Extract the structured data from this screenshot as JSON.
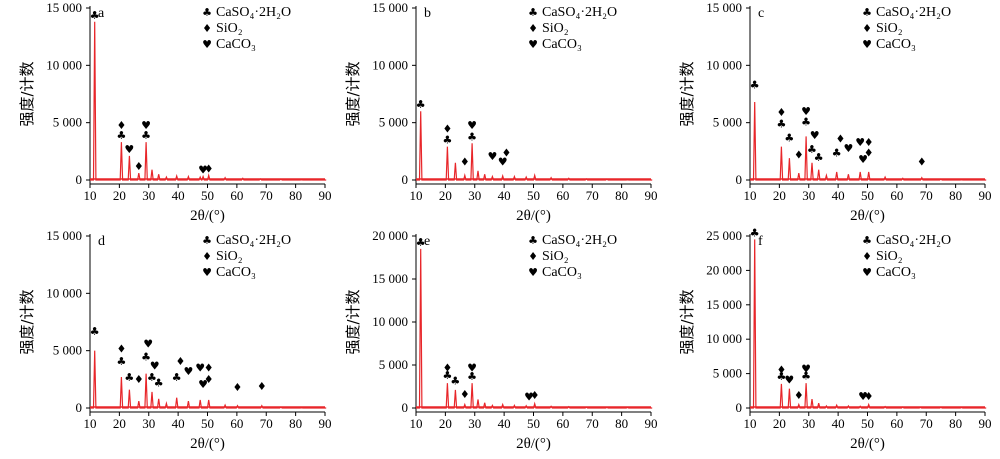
{
  "chart_data": [
    {
      "type": "line",
      "panel_label": "a",
      "ylim": [
        0,
        15000
      ],
      "yticks": [
        "0",
        "5 000",
        "10 000",
        "15 000"
      ],
      "ytick_values": [
        0,
        5000,
        10000,
        15000
      ],
      "xlim": [
        10,
        90
      ],
      "xticks": [
        "10",
        "20",
        "30",
        "40",
        "50",
        "60",
        "70",
        "80",
        "90"
      ],
      "xlabel": "2θ/(°)",
      "ylabel": "强度/计数",
      "legend": [
        "CaSO₄·2H₂O",
        "SiO₂",
        "CaCO₃"
      ],
      "series": [
        {
          "color": "#e8262a",
          "x": [
            10,
            11.6,
            20.7,
            23.4,
            26.6,
            29.1,
            31.1,
            33.4,
            36,
            39.5,
            43.5,
            47.5,
            48.5,
            50.4,
            56,
            62,
            68,
            75,
            82,
            90
          ],
          "y": [
            0,
            13800,
            3300,
            2100,
            600,
            3300,
            900,
            500,
            250,
            350,
            300,
            250,
            300,
            400,
            200,
            150,
            100,
            80,
            60,
            0
          ]
        }
      ],
      "markers": [
        {
          "x": 11.6,
          "y": 13800,
          "sym": "club"
        },
        {
          "x": 20.7,
          "y": 3300,
          "sym": "club"
        },
        {
          "x": 20.7,
          "y": 4200,
          "sym": "diamond"
        },
        {
          "x": 23.4,
          "y": 2100,
          "sym": "heart"
        },
        {
          "x": 26.6,
          "y": 600,
          "sym": "diamond"
        },
        {
          "x": 29.1,
          "y": 3300,
          "sym": "club"
        },
        {
          "x": 29.1,
          "y": 4200,
          "sym": "heart"
        },
        {
          "x": 48.5,
          "y": 300,
          "sym": "heart"
        },
        {
          "x": 50.4,
          "y": 400,
          "sym": "diamond"
        }
      ]
    },
    {
      "type": "line",
      "panel_label": "b",
      "ylim": [
        0,
        15000
      ],
      "yticks": [
        "0",
        "5 000",
        "10 000",
        "15 000"
      ],
      "ytick_values": [
        0,
        5000,
        10000,
        15000
      ],
      "xlim": [
        10,
        90
      ],
      "xticks": [
        "10",
        "20",
        "30",
        "40",
        "50",
        "60",
        "70",
        "80",
        "90"
      ],
      "xlabel": "2θ/(°)",
      "ylabel": "强度/计数",
      "legend": [
        "CaSO₄·2H₂O",
        "SiO₂",
        "CaCO₃"
      ],
      "series": [
        {
          "color": "#e8262a",
          "x": [
            10,
            11.6,
            20.7,
            23.4,
            26.6,
            29.1,
            31.1,
            33.4,
            36,
            39.5,
            43.5,
            47.5,
            50.4,
            56,
            62,
            68,
            75,
            82,
            90
          ],
          "y": [
            0,
            6000,
            2900,
            1500,
            400,
            3200,
            800,
            500,
            300,
            350,
            300,
            250,
            400,
            200,
            150,
            100,
            80,
            60,
            0
          ]
        }
      ],
      "markers": [
        {
          "x": 11.6,
          "y": 6000,
          "sym": "club"
        },
        {
          "x": 20.7,
          "y": 2900,
          "sym": "club"
        },
        {
          "x": 20.7,
          "y": 3900,
          "sym": "diamond"
        },
        {
          "x": 26.6,
          "y": 1000,
          "sym": "diamond"
        },
        {
          "x": 29.1,
          "y": 3200,
          "sym": "club"
        },
        {
          "x": 29.1,
          "y": 4200,
          "sym": "heart"
        },
        {
          "x": 36,
          "y": 1500,
          "sym": "heart"
        },
        {
          "x": 39.5,
          "y": 1000,
          "sym": "heart"
        },
        {
          "x": 40.8,
          "y": 1800,
          "sym": "diamond"
        }
      ]
    },
    {
      "type": "line",
      "panel_label": "c",
      "ylim": [
        0,
        15000
      ],
      "yticks": [
        "0",
        "5 000",
        "10 000",
        "15 000"
      ],
      "ytick_values": [
        0,
        5000,
        10000,
        15000
      ],
      "xlim": [
        10,
        90
      ],
      "xticks": [
        "10",
        "20",
        "30",
        "40",
        "50",
        "60",
        "70",
        "80",
        "90"
      ],
      "xlabel": "2θ/(°)",
      "ylabel": "强度/计数",
      "legend": [
        "CaSO₄·2H₂O",
        "SiO₂",
        "CaCO₃"
      ],
      "series": [
        {
          "color": "#e8262a",
          "x": [
            10,
            11.6,
            20.7,
            23.4,
            26.6,
            29.1,
            31.1,
            33.4,
            36,
            39.5,
            43.5,
            47.5,
            50.4,
            56,
            62,
            68.5,
            75,
            82,
            90
          ],
          "y": [
            0,
            6800,
            2900,
            1900,
            600,
            3800,
            1500,
            900,
            400,
            700,
            500,
            700,
            700,
            250,
            150,
            200,
            80,
            60,
            0
          ]
        }
      ],
      "markers": [
        {
          "x": 11.6,
          "y": 7700,
          "sym": "club"
        },
        {
          "x": 20.7,
          "y": 4300,
          "sym": "club"
        },
        {
          "x": 20.7,
          "y": 5300,
          "sym": "diamond"
        },
        {
          "x": 23.4,
          "y": 3100,
          "sym": "club"
        },
        {
          "x": 26.6,
          "y": 1600,
          "sym": "diamond"
        },
        {
          "x": 29.1,
          "y": 4500,
          "sym": "club"
        },
        {
          "x": 29.1,
          "y": 5400,
          "sym": "heart"
        },
        {
          "x": 31.1,
          "y": 2100,
          "sym": "club"
        },
        {
          "x": 32,
          "y": 3300,
          "sym": "heart"
        },
        {
          "x": 33.4,
          "y": 1400,
          "sym": "club"
        },
        {
          "x": 39.5,
          "y": 1800,
          "sym": "club"
        },
        {
          "x": 40.8,
          "y": 3000,
          "sym": "diamond"
        },
        {
          "x": 43.5,
          "y": 2200,
          "sym": "heart"
        },
        {
          "x": 47.5,
          "y": 2700,
          "sym": "heart"
        },
        {
          "x": 48.5,
          "y": 1200,
          "sym": "heart"
        },
        {
          "x": 50.4,
          "y": 1800,
          "sym": "diamond"
        },
        {
          "x": 50.4,
          "y": 2700,
          "sym": "diamond"
        },
        {
          "x": 68.5,
          "y": 1000,
          "sym": "diamond"
        }
      ]
    },
    {
      "type": "line",
      "panel_label": "d",
      "ylim": [
        0,
        15000
      ],
      "yticks": [
        "0",
        "5 000",
        "10 000",
        "15 000"
      ],
      "ytick_values": [
        0,
        5000,
        10000,
        15000
      ],
      "xlim": [
        10,
        90
      ],
      "xticks": [
        "10",
        "20",
        "30",
        "40",
        "50",
        "60",
        "70",
        "80",
        "90"
      ],
      "xlabel": "2θ/(°)",
      "ylabel": "强度/计数",
      "legend": [
        "CaSO₄·2H₂O",
        "SiO₂",
        "CaCO₃"
      ],
      "series": [
        {
          "color": "#e8262a",
          "x": [
            10,
            11.6,
            20.7,
            23.4,
            26.6,
            29.1,
            31.1,
            33.4,
            36,
            39.5,
            43.5,
            47.5,
            50.4,
            56,
            60.2,
            68.5,
            75,
            82,
            90
          ],
          "y": [
            0,
            5000,
            2700,
            1600,
            600,
            3000,
            1400,
            800,
            400,
            900,
            600,
            700,
            700,
            250,
            200,
            200,
            80,
            60,
            0
          ]
        }
      ],
      "markers": [
        {
          "x": 11.6,
          "y": 6100,
          "sym": "club"
        },
        {
          "x": 20.7,
          "y": 3500,
          "sym": "club"
        },
        {
          "x": 20.7,
          "y": 4600,
          "sym": "diamond"
        },
        {
          "x": 23.4,
          "y": 2100,
          "sym": "club"
        },
        {
          "x": 26.6,
          "y": 1900,
          "sym": "diamond"
        },
        {
          "x": 29.1,
          "y": 3900,
          "sym": "club"
        },
        {
          "x": 29.8,
          "y": 5000,
          "sym": "heart"
        },
        {
          "x": 31.1,
          "y": 2100,
          "sym": "club"
        },
        {
          "x": 32,
          "y": 3100,
          "sym": "heart"
        },
        {
          "x": 33.4,
          "y": 1600,
          "sym": "club"
        },
        {
          "x": 39.5,
          "y": 2100,
          "sym": "club"
        },
        {
          "x": 40.8,
          "y": 3500,
          "sym": "diamond"
        },
        {
          "x": 43.5,
          "y": 2600,
          "sym": "heart"
        },
        {
          "x": 47.5,
          "y": 2900,
          "sym": "heart"
        },
        {
          "x": 48.5,
          "y": 1500,
          "sym": "heart"
        },
        {
          "x": 50.4,
          "y": 1900,
          "sym": "diamond"
        },
        {
          "x": 50.4,
          "y": 2900,
          "sym": "diamond"
        },
        {
          "x": 60.2,
          "y": 1200,
          "sym": "diamond"
        },
        {
          "x": 68.5,
          "y": 1300,
          "sym": "diamond"
        }
      ]
    },
    {
      "type": "line",
      "panel_label": "e",
      "ylim": [
        0,
        20000
      ],
      "yticks": [
        "0",
        "5 000",
        "10 000",
        "15 000",
        "20 000"
      ],
      "ytick_values": [
        0,
        5000,
        10000,
        15000,
        20000
      ],
      "xlim": [
        10,
        90
      ],
      "xticks": [
        "10",
        "20",
        "30",
        "40",
        "50",
        "60",
        "70",
        "80",
        "90"
      ],
      "xlabel": "2θ/(°)",
      "ylabel": "强度/计数",
      "legend": [
        "CaSO₄·2H₂O",
        "SiO₂",
        "CaCO₃"
      ],
      "series": [
        {
          "color": "#e8262a",
          "x": [
            10,
            11.6,
            20.7,
            23.4,
            26.6,
            29.1,
            31.1,
            33.4,
            36,
            39.5,
            43.5,
            47.5,
            50.4,
            56,
            62,
            68,
            75,
            82,
            90
          ],
          "y": [
            0,
            18500,
            2900,
            2100,
            400,
            2900,
            1000,
            600,
            300,
            400,
            300,
            250,
            500,
            200,
            150,
            100,
            80,
            60,
            0
          ]
        }
      ],
      "markers": [
        {
          "x": 11.6,
          "y": 18500,
          "sym": "club"
        },
        {
          "x": 20.7,
          "y": 3000,
          "sym": "club"
        },
        {
          "x": 20.7,
          "y": 3900,
          "sym": "diamond"
        },
        {
          "x": 23.4,
          "y": 2400,
          "sym": "club"
        },
        {
          "x": 26.6,
          "y": 800,
          "sym": "diamond"
        },
        {
          "x": 29.1,
          "y": 2900,
          "sym": "club"
        },
        {
          "x": 29.1,
          "y": 3900,
          "sym": "heart"
        },
        {
          "x": 48.5,
          "y": 500,
          "sym": "heart"
        },
        {
          "x": 50.4,
          "y": 700,
          "sym": "diamond"
        }
      ]
    },
    {
      "type": "line",
      "panel_label": "f",
      "ylim": [
        0,
        25000
      ],
      "yticks": [
        "0",
        "5 000",
        "10 000",
        "15 000",
        "20 000",
        "25 000"
      ],
      "ytick_values": [
        0,
        5000,
        10000,
        15000,
        20000,
        25000
      ],
      "xlim": [
        10,
        90
      ],
      "xticks": [
        "10",
        "20",
        "30",
        "40",
        "50",
        "60",
        "70",
        "80",
        "90"
      ],
      "xlabel": "2θ/(°)",
      "ylabel": "强度/计数",
      "legend": [
        "CaSO₄·2H₂O",
        "SiO₂",
        "CaCO₃"
      ],
      "series": [
        {
          "color": "#e8262a",
          "x": [
            10,
            11.6,
            20.7,
            23.4,
            26.6,
            29.1,
            31.1,
            33.4,
            36,
            39.5,
            43.5,
            47.5,
            50.4,
            56,
            62,
            68,
            75,
            82,
            90
          ],
          "y": [
            0,
            24500,
            3500,
            2800,
            500,
            3600,
            1300,
            700,
            300,
            400,
            300,
            250,
            500,
            200,
            150,
            100,
            80,
            60,
            0
          ]
        }
      ],
      "markers": [
        {
          "x": 11.6,
          "y": 24500,
          "sym": "club"
        },
        {
          "x": 20.7,
          "y": 3600,
          "sym": "club"
        },
        {
          "x": 20.7,
          "y": 4600,
          "sym": "diamond"
        },
        {
          "x": 23.4,
          "y": 3100,
          "sym": "heart"
        },
        {
          "x": 26.6,
          "y": 900,
          "sym": "diamond"
        },
        {
          "x": 29.1,
          "y": 3700,
          "sym": "club"
        },
        {
          "x": 29.1,
          "y": 4700,
          "sym": "heart"
        },
        {
          "x": 48.5,
          "y": 700,
          "sym": "heart"
        },
        {
          "x": 50.4,
          "y": 700,
          "sym": "diamond"
        }
      ]
    }
  ]
}
